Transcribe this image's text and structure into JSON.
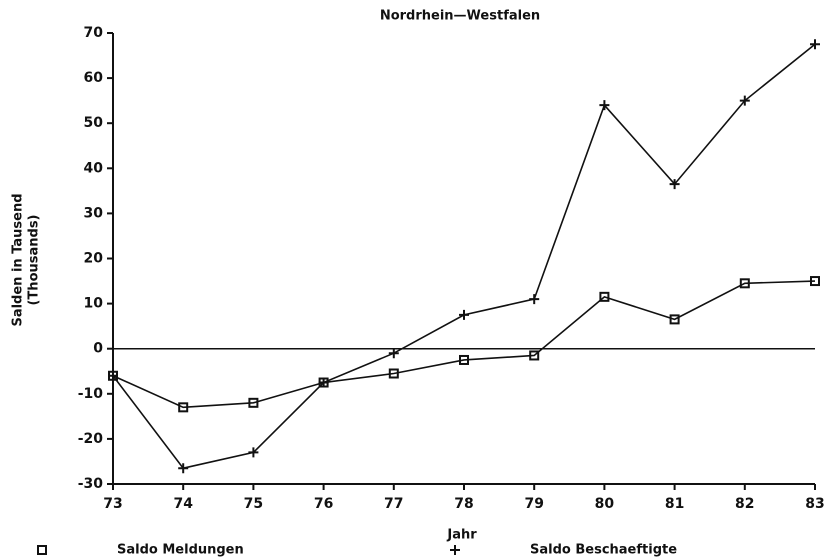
{
  "chart_data": {
    "type": "line",
    "subtitle": "Nordrhein—Westfalen",
    "x_label": "Jahr",
    "y_label": [
      "Salden in Tausend",
      "(Thousands)"
    ],
    "x": [
      73,
      74,
      75,
      76,
      77,
      78,
      79,
      80,
      81,
      82,
      83
    ],
    "series": [
      {
        "name": "Saldo Meldungen",
        "color": "#111111",
        "marker": "square",
        "values": [
          -6,
          -13,
          -12,
          -7.5,
          -5.5,
          -2.5,
          -1.5,
          11.5,
          6.5,
          14.5,
          15
        ]
      },
      {
        "name": "Saldo Beschaeftigte",
        "color": "#111111",
        "marker": "plus",
        "values": [
          -6,
          -26.5,
          -23,
          -7.5,
          -1,
          7.5,
          11,
          54,
          36.5,
          55,
          67.5
        ]
      }
    ],
    "xlim": [
      73,
      83
    ],
    "xticks": [
      73,
      74,
      75,
      76,
      77,
      78,
      79,
      80,
      81,
      82,
      83
    ],
    "ylim": [
      -30,
      70
    ],
    "yticks": [
      70,
      60,
      50,
      40,
      30,
      20,
      10,
      0,
      -10,
      -20,
      -30
    ],
    "grid": false,
    "legend": "bottom"
  }
}
